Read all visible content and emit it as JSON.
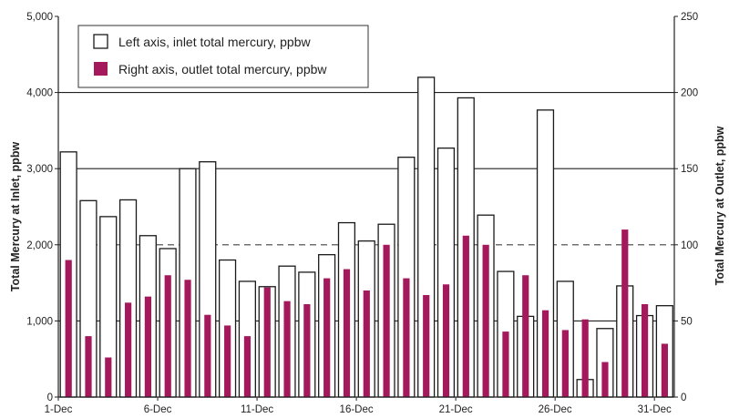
{
  "chart_data": {
    "type": "bar",
    "left_axis": {
      "label": "Total Mercury at Inlet, ppbw",
      "ylim": [
        0,
        5000
      ],
      "ticks": [
        "0",
        "1,000",
        "2,000",
        "3,000",
        "4,000",
        "5,000"
      ]
    },
    "right_axis": {
      "label": "Total Mercury at Outlet, ppbw",
      "ylim": [
        0,
        250
      ],
      "ticks": [
        "0",
        "50",
        "100",
        "150",
        "200",
        "250"
      ]
    },
    "x_tick_labels": [
      "1-Dec",
      "6-Dec",
      "11-Dec",
      "16-Dec",
      "21-Dec",
      "26-Dec",
      "31-Dec"
    ],
    "x_tick_days": [
      1,
      6,
      11,
      16,
      21,
      26,
      31
    ],
    "days": [
      1,
      2,
      3,
      4,
      5,
      6,
      7,
      8,
      9,
      10,
      11,
      12,
      13,
      14,
      15,
      16,
      17,
      18,
      19,
      20,
      21,
      22,
      23,
      24,
      25,
      26,
      27,
      28,
      29,
      30,
      31
    ],
    "series": [
      {
        "name": "Left axis, inlet total mercury, ppbw",
        "axis": "left",
        "color": "#ffffff",
        "stroke": "#1a1a1a",
        "values": [
          3220,
          2580,
          2370,
          2590,
          2120,
          1950,
          3000,
          3090,
          1800,
          1520,
          1450,
          1720,
          1640,
          1870,
          2290,
          2050,
          2270,
          3150,
          4200,
          3270,
          3930,
          2390,
          1650,
          1060,
          3770,
          1520,
          230,
          900,
          1460,
          1070,
          1200
        ]
      },
      {
        "name": "Right axis, outlet total mercury, ppbw",
        "axis": "right",
        "color": "#a3195b",
        "values": [
          90,
          40,
          26,
          62,
          66,
          80,
          77,
          54,
          47,
          40,
          72,
          63,
          61,
          78,
          84,
          70,
          100,
          78,
          67,
          74,
          106,
          100,
          43,
          80,
          57,
          44,
          51,
          23,
          110,
          61,
          35
        ]
      }
    ],
    "reference_lines": [
      {
        "axis": "left",
        "value": 1000,
        "style": "solid"
      },
      {
        "axis": "left",
        "value": 2000,
        "style": "dashed"
      },
      {
        "axis": "left",
        "value": 3000,
        "style": "solid"
      },
      {
        "axis": "left",
        "value": 4000,
        "style": "solid"
      }
    ],
    "legend_position": "top-left"
  }
}
